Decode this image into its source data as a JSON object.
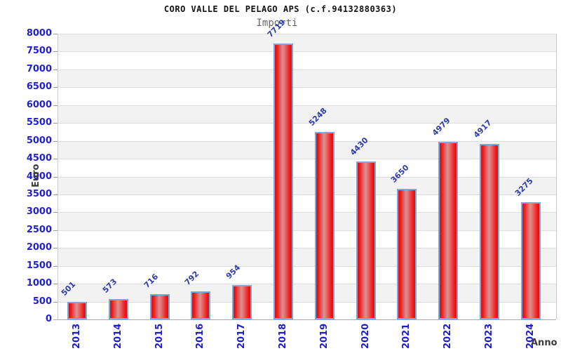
{
  "header": {
    "title": "CORO VALLE DEL PELAGO APS (c.f.94132880363)",
    "subtitle": "Importi"
  },
  "chart_data": {
    "type": "bar",
    "title": "CORO VALLE DEL PELAGO APS (c.f.94132880363)",
    "subtitle": "Importi",
    "categories": [
      "2013",
      "2014",
      "2015",
      "2016",
      "2017",
      "2018",
      "2019",
      "2020",
      "2021",
      "2022",
      "2023",
      "2024"
    ],
    "values": [
      501,
      573,
      716,
      792,
      954,
      7719,
      5248,
      4430,
      3650,
      4979,
      4917,
      3275
    ],
    "xlabel": "Anno",
    "ylabel": "Euro",
    "ylim": [
      0,
      8000
    ],
    "ytick_step": 500,
    "grid": "horizontal bands, alternating",
    "legend": "none",
    "colors": {
      "bar_fill": [
        "#d31414",
        "#ee1a1a",
        "#d89292",
        "#ee1a1a",
        "#d31414"
      ],
      "bar_border": "#79aade",
      "tick_label": "#1f1fd2",
      "value_label": "#2d3cae",
      "band": "#f2f2f2",
      "gridline": "#dedede",
      "axis_title": "#3a3a3a",
      "title": "#111111",
      "subtitle": "#666666"
    }
  }
}
